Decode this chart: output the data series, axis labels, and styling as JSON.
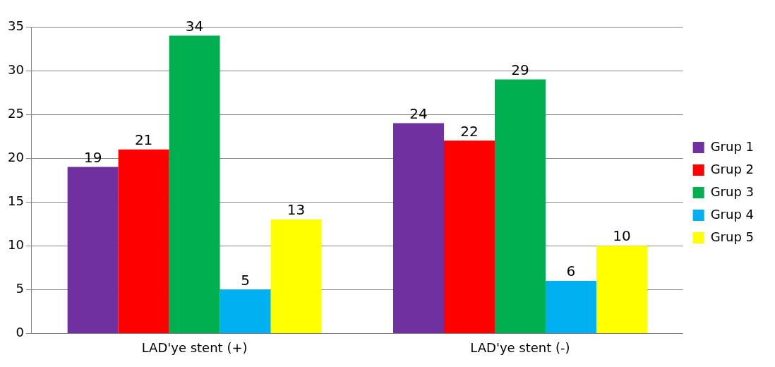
{
  "chart_data": {
    "type": "bar",
    "categories": [
      "LAD'ye stent (+)",
      "LAD'ye stent (-)"
    ],
    "series": [
      {
        "name": "Grup 1",
        "color": "#7030a0",
        "values": [
          19,
          24
        ]
      },
      {
        "name": "Grup 2",
        "color": "#ff0000",
        "values": [
          21,
          22
        ]
      },
      {
        "name": "Grup 3",
        "color": "#00b050",
        "values": [
          34,
          29
        ]
      },
      {
        "name": "Grup 4",
        "color": "#00b0f0",
        "values": [
          5,
          6
        ]
      },
      {
        "name": "Grup 5",
        "color": "#ffff00",
        "values": [
          13,
          10
        ]
      }
    ],
    "ylim": [
      0,
      35
    ],
    "yticks": [
      0,
      5,
      10,
      15,
      20,
      25,
      30,
      35
    ],
    "grid": "y",
    "legend": "right",
    "data_labels": true
  }
}
